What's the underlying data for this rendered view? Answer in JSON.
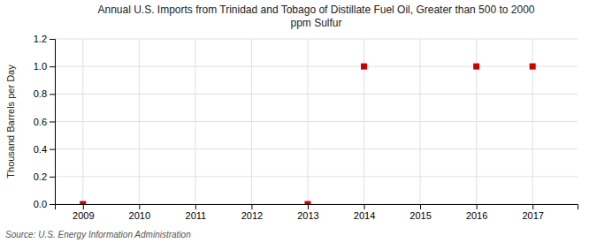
{
  "chart_data": {
    "type": "scatter",
    "title": "Annual U.S. Imports from Trinidad and Tobago of Distillate Fuel Oil, Greater than 500 to 2000\nppm Sulfur",
    "y_label": "Thousand Barrels per Day",
    "source": "Source: U.S. Energy Information Administration",
    "x": [
      2009,
      2013,
      2014,
      2016,
      2017
    ],
    "values": [
      0.0,
      0.0,
      1.0,
      1.0,
      1.0
    ],
    "color": "#cc0000",
    "marker": "square",
    "xlim": [
      2008.5,
      2017.8
    ],
    "xticks": [
      2009,
      2010,
      2011,
      2012,
      2013,
      2014,
      2015,
      2016,
      2017
    ],
    "ylim": [
      0,
      1.2
    ],
    "yticks": [
      {
        "value": 0,
        "label": "0.0"
      },
      0.2,
      0.4,
      0.6,
      0.8,
      {
        "value": 1,
        "label": "1.0"
      },
      1.2
    ],
    "grid": true
  }
}
